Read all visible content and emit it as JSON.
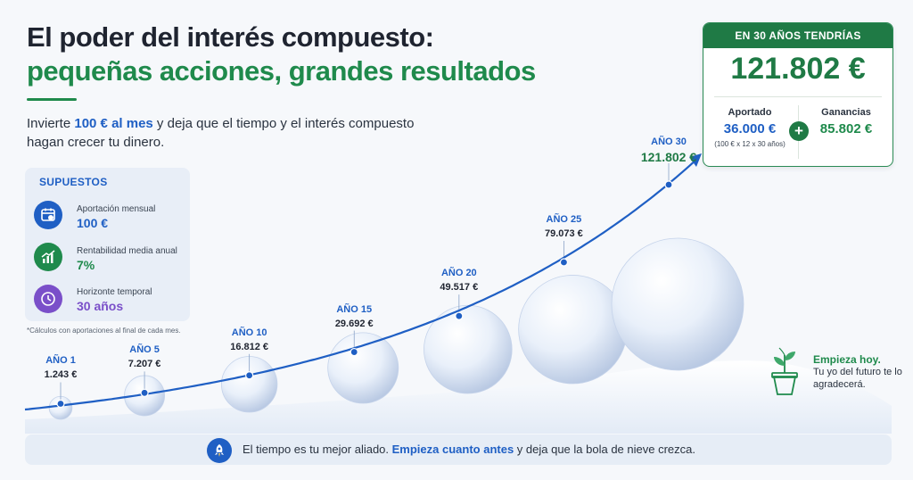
{
  "header": {
    "title_line1": "El poder del interés compuesto:",
    "title_line2": "pequeñas acciones, grandes resultados",
    "intro_before": "Invierte ",
    "intro_highlight": "100 € al mes",
    "intro_after": " y deja que el tiempo y el interés compuesto hagan crecer tu dinero."
  },
  "assumptions": {
    "title": "SUPUESTOS",
    "items": [
      {
        "label": "Aportación mensual",
        "value": "100 €",
        "icon": "calendar-euro-icon",
        "color": "#1f5fc4"
      },
      {
        "label": "Rentabilidad media anual",
        "value": "7%",
        "icon": "growth-chart-icon",
        "color": "#1f8a4c"
      },
      {
        "label": "Horizonte temporal",
        "value": "30 años",
        "icon": "clock-icon",
        "color": "#7a4fc9"
      }
    ],
    "footnote": "*Cálculos con aportaciones al final de cada mes."
  },
  "result": {
    "header": "EN 30 AÑOS TENDRÍAS",
    "total": "121.802 €",
    "contributed_label": "Aportado",
    "contributed_value": "36.000 €",
    "contributed_note": "(100 € x 12 x 30 años)",
    "gains_label": "Ganancias",
    "gains_value": "85.802 €",
    "plus": "+"
  },
  "chart_data": {
    "type": "line",
    "x": [
      1,
      5,
      10,
      15,
      20,
      25,
      30
    ],
    "values": [
      1243,
      7207,
      16812,
      29692,
      49517,
      79073,
      121802
    ],
    "points": [
      {
        "year_label": "AÑO 1",
        "amount_label": "1.243 €"
      },
      {
        "year_label": "AÑO 5",
        "amount_label": "7.207 €"
      },
      {
        "year_label": "AÑO 10",
        "amount_label": "16.812 €"
      },
      {
        "year_label": "AÑO 15",
        "amount_label": "29.692 €"
      },
      {
        "year_label": "AÑO 20",
        "amount_label": "49.517 €"
      },
      {
        "year_label": "AÑO 25",
        "amount_label": "79.073 €"
      },
      {
        "year_label": "AÑO 30",
        "amount_label": "121.802 €"
      }
    ],
    "line_color": "#1f5fc4"
  },
  "cta": {
    "title": "Empieza hoy.",
    "text": "Tu yo del futuro te lo agradecerá."
  },
  "banner": {
    "before": "El tiempo es tu mejor aliado. ",
    "highlight": "Empieza cuanto antes",
    "after": " y deja que la bola de nieve crezca.",
    "icon": "rocket-icon"
  }
}
